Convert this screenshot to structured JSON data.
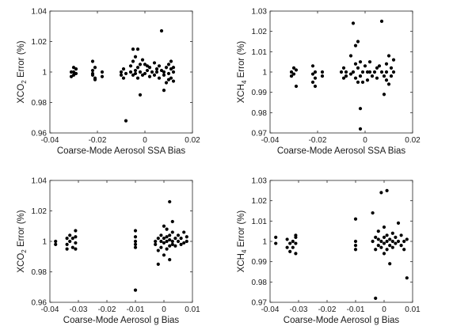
{
  "colors": {
    "marker": "#000000",
    "axes": "#262626",
    "background": "#ffffff"
  },
  "chart_data": [
    {
      "type": "scatter",
      "panel": "top-left",
      "xlabel": "Coarse-Mode Aerosol SSA Bias",
      "ylabel": {
        "base": "XCO",
        "sub": "2",
        "rest": " Error (%)"
      },
      "xlim": [
        -0.04,
        0.02
      ],
      "ylim": [
        0.96,
        1.04
      ],
      "xticks": [
        -0.04,
        -0.02,
        0,
        0.02
      ],
      "yticks": [
        0.96,
        0.98,
        1,
        1.02,
        1.04
      ],
      "xtick_labels": [
        "-0.04",
        "-0.02",
        "0",
        "0.02"
      ],
      "ytick_labels": [
        "0.96",
        "0.98",
        "1",
        "1.02",
        "1.04"
      ],
      "grid": false,
      "points": [
        [
          -0.03,
          1.0
        ],
        [
          -0.03,
          1.003
        ],
        [
          -0.03,
          0.998
        ],
        [
          -0.029,
          0.999
        ],
        [
          -0.029,
          1.002
        ],
        [
          -0.031,
          0.997
        ],
        [
          -0.031,
          1.0
        ],
        [
          -0.022,
          1.007
        ],
        [
          -0.022,
          1.001
        ],
        [
          -0.022,
          0.998
        ],
        [
          -0.021,
          0.996
        ],
        [
          -0.021,
          1.003
        ],
        [
          -0.021,
          0.995
        ],
        [
          -0.022,
          0.999
        ],
        [
          -0.018,
          1.0
        ],
        [
          -0.018,
          0.997
        ],
        [
          -0.01,
          1.0
        ],
        [
          -0.01,
          0.998
        ],
        [
          -0.009,
          1.002
        ],
        [
          -0.009,
          0.996
        ],
        [
          -0.008,
          0.968
        ],
        [
          -0.008,
          0.999
        ],
        [
          -0.006,
          1.0
        ],
        [
          -0.006,
          1.004
        ],
        [
          -0.005,
          0.998
        ],
        [
          -0.005,
          1.007
        ],
        [
          -0.005,
          1.015
        ],
        [
          -0.004,
          1.001
        ],
        [
          -0.004,
          0.999
        ],
        [
          -0.004,
          1.01
        ],
        [
          -0.003,
          1.003
        ],
        [
          -0.003,
          1.015
        ],
        [
          -0.003,
          0.996
        ],
        [
          -0.002,
          0.985
        ],
        [
          -0.002,
          1.0
        ],
        [
          -0.002,
          1.005
        ],
        [
          -0.001,
          1.008
        ],
        [
          -0.001,
          0.998
        ],
        [
          0.0,
          1.005
        ],
        [
          0.0,
          0.999
        ],
        [
          0.001,
          1.004
        ],
        [
          0.001,
          1.001
        ],
        [
          0.002,
          0.997
        ],
        [
          0.002,
          1.003
        ],
        [
          0.003,
          1.0
        ],
        [
          0.004,
          1.006
        ],
        [
          0.004,
          0.998
        ],
        [
          0.005,
          1.002
        ],
        [
          0.005,
          1.0
        ],
        [
          0.006,
          0.996
        ],
        [
          0.006,
          1.004
        ],
        [
          0.007,
          1.001
        ],
        [
          0.007,
          1.027
        ],
        [
          0.008,
          1.0
        ],
        [
          0.008,
          0.998
        ],
        [
          0.008,
          0.988
        ],
        [
          0.009,
          1.003
        ],
        [
          0.009,
          0.993
        ],
        [
          0.01,
          1.005
        ],
        [
          0.01,
          0.999
        ],
        [
          0.01,
          0.995
        ],
        [
          0.011,
          1.002
        ],
        [
          0.011,
          1.007
        ],
        [
          0.011,
          0.996
        ],
        [
          0.012,
          1.003
        ],
        [
          0.012,
          1.0
        ],
        [
          0.012,
          0.994
        ]
      ]
    },
    {
      "type": "scatter",
      "panel": "top-right",
      "xlabel": "Coarse-Mode Aerosol SSA Bias",
      "ylabel": {
        "base": "XCH",
        "sub": "4",
        "rest": " Error (%)"
      },
      "xlim": [
        -0.04,
        0.02
      ],
      "ylim": [
        0.97,
        1.03
      ],
      "xticks": [
        -0.04,
        -0.02,
        0,
        0.02
      ],
      "yticks": [
        0.97,
        0.98,
        0.99,
        1,
        1.01,
        1.02,
        1.03
      ],
      "xtick_labels": [
        "-0.04",
        "-0.02",
        "0",
        "0.02"
      ],
      "ytick_labels": [
        "0.97",
        "0.98",
        "0.99",
        "1",
        "1.01",
        "1.02",
        "1.03"
      ],
      "grid": false,
      "points": [
        [
          -0.03,
          1.002
        ],
        [
          -0.03,
          0.999
        ],
        [
          -0.029,
          1.001
        ],
        [
          -0.029,
          0.993
        ],
        [
          -0.031,
          0.998
        ],
        [
          -0.031,
          1.0
        ],
        [
          -0.022,
          1.003
        ],
        [
          -0.022,
          0.999
        ],
        [
          -0.022,
          0.995
        ],
        [
          -0.021,
          0.993
        ],
        [
          -0.021,
          1.0
        ],
        [
          -0.021,
          0.997
        ],
        [
          -0.018,
          0.998
        ],
        [
          -0.018,
          1.0
        ],
        [
          -0.01,
          1.0
        ],
        [
          -0.009,
          0.997
        ],
        [
          -0.009,
          1.002
        ],
        [
          -0.008,
          0.998
        ],
        [
          -0.008,
          1.0
        ],
        [
          -0.006,
          1.008
        ],
        [
          -0.006,
          0.999
        ],
        [
          -0.005,
          1.0
        ],
        [
          -0.005,
          1.024
        ],
        [
          -0.004,
          1.004
        ],
        [
          -0.004,
          0.997
        ],
        [
          -0.004,
          1.013
        ],
        [
          -0.003,
          0.995
        ],
        [
          -0.003,
          1.002
        ],
        [
          -0.003,
          1.015
        ],
        [
          -0.002,
          0.982
        ],
        [
          -0.002,
          0.972
        ],
        [
          -0.002,
          0.998
        ],
        [
          -0.002,
          1.005
        ],
        [
          -0.001,
          1.0
        ],
        [
          -0.001,
          0.995
        ],
        [
          0.0,
          1.003
        ],
        [
          0.001,
          1.0
        ],
        [
          0.001,
          0.996
        ],
        [
          0.002,
          1.005
        ],
        [
          0.002,
          1.0
        ],
        [
          0.003,
          0.998
        ],
        [
          0.004,
          1.0
        ],
        [
          0.005,
          1.002
        ],
        [
          0.005,
          0.997
        ],
        [
          0.006,
          1.003
        ],
        [
          0.007,
          1.0
        ],
        [
          0.007,
          1.025
        ],
        [
          0.008,
          0.998
        ],
        [
          0.008,
          0.989
        ],
        [
          0.009,
          1.004
        ],
        [
          0.009,
          0.996
        ],
        [
          0.009,
          1.0
        ],
        [
          0.01,
          1.008
        ],
        [
          0.01,
          0.994
        ],
        [
          0.011,
          1.002
        ],
        [
          0.011,
          0.998
        ],
        [
          0.012,
          1.006
        ],
        [
          0.012,
          1.0
        ]
      ]
    },
    {
      "type": "scatter",
      "panel": "bottom-left",
      "xlabel": "Coarse-Mode Aerosol g Bias",
      "ylabel": {
        "base": "XCO",
        "sub": "2",
        "rest": " Error (%)"
      },
      "xlim": [
        -0.04,
        0.01
      ],
      "ylim": [
        0.96,
        1.04
      ],
      "xticks": [
        -0.04,
        -0.03,
        -0.02,
        -0.01,
        0,
        0.01
      ],
      "yticks": [
        0.96,
        0.98,
        1,
        1.02,
        1.04
      ],
      "xtick_labels": [
        "-0.04",
        "-0.03",
        "-0.02",
        "-0.01",
        "0",
        "0.01"
      ],
      "ytick_labels": [
        "0.96",
        "0.98",
        "1",
        "1.02",
        "1.04"
      ],
      "grid": false,
      "points": [
        [
          -0.038,
          1.0
        ],
        [
          -0.038,
          0.998
        ],
        [
          -0.034,
          1.002
        ],
        [
          -0.034,
          0.998
        ],
        [
          -0.034,
          0.995
        ],
        [
          -0.033,
          1.004
        ],
        [
          -0.033,
          1.0
        ],
        [
          -0.032,
          0.996
        ],
        [
          -0.032,
          1.002
        ],
        [
          -0.031,
          1.007
        ],
        [
          -0.031,
          0.999
        ],
        [
          -0.031,
          0.995
        ],
        [
          -0.031,
          1.003
        ],
        [
          -0.01,
          1.007
        ],
        [
          -0.01,
          1.0
        ],
        [
          -0.01,
          0.998
        ],
        [
          -0.01,
          1.003
        ],
        [
          -0.01,
          0.996
        ],
        [
          -0.01,
          0.968
        ],
        [
          -0.003,
          1.0
        ],
        [
          -0.003,
          0.998
        ],
        [
          -0.002,
          0.985
        ],
        [
          -0.002,
          1.002
        ],
        [
          -0.002,
          0.994
        ],
        [
          -0.001,
          1.0
        ],
        [
          -0.001,
          1.004
        ],
        [
          -0.001,
          0.996
        ],
        [
          0.0,
          1.002
        ],
        [
          0.0,
          0.999
        ],
        [
          0.0,
          1.01
        ],
        [
          0.0,
          0.991
        ],
        [
          0.001,
          1.003
        ],
        [
          0.001,
          1.0
        ],
        [
          0.001,
          0.995
        ],
        [
          0.001,
          1.008
        ],
        [
          0.002,
          1.001
        ],
        [
          0.002,
          0.997
        ],
        [
          0.002,
          1.026
        ],
        [
          0.002,
          1.004
        ],
        [
          0.002,
          0.988
        ],
        [
          0.003,
          1.0
        ],
        [
          0.003,
          1.006
        ],
        [
          0.003,
          0.998
        ],
        [
          0.003,
          1.013
        ],
        [
          0.004,
          1.002
        ],
        [
          0.004,
          0.997
        ],
        [
          0.005,
          1.0
        ],
        [
          0.005,
          1.004
        ],
        [
          0.006,
          0.998
        ],
        [
          0.006,
          1.002
        ],
        [
          0.007,
          1.006
        ],
        [
          0.007,
          0.999
        ],
        [
          0.008,
          1.003
        ],
        [
          0.008,
          1.0
        ]
      ]
    },
    {
      "type": "scatter",
      "panel": "bottom-right",
      "xlabel": "Coarse-Mode Aerosol g Bias",
      "ylabel": {
        "base": "XCH",
        "sub": "4",
        "rest": " Error (%)"
      },
      "xlim": [
        -0.04,
        0.01
      ],
      "ylim": [
        0.97,
        1.03
      ],
      "xticks": [
        -0.04,
        -0.03,
        -0.02,
        -0.01,
        0,
        0.01
      ],
      "yticks": [
        0.97,
        0.98,
        0.99,
        1,
        1.01,
        1.02,
        1.03
      ],
      "xtick_labels": [
        "-0.04",
        "-0.03",
        "-0.02",
        "-0.01",
        "0",
        "0.01"
      ],
      "ytick_labels": [
        "0.97",
        "0.98",
        "0.99",
        "1",
        "1.01",
        "1.02",
        "1.03"
      ],
      "grid": false,
      "points": [
        [
          -0.038,
          1.002
        ],
        [
          -0.038,
          0.999
        ],
        [
          -0.034,
          1.001
        ],
        [
          -0.034,
          0.997
        ],
        [
          -0.033,
          0.999
        ],
        [
          -0.033,
          0.995
        ],
        [
          -0.032,
          1.0
        ],
        [
          -0.032,
          0.997
        ],
        [
          -0.031,
          1.003
        ],
        [
          -0.031,
          0.999
        ],
        [
          -0.031,
          0.994
        ],
        [
          -0.031,
          1.002
        ],
        [
          -0.01,
          1.011
        ],
        [
          -0.01,
          0.998
        ],
        [
          -0.01,
          1.0
        ],
        [
          -0.01,
          0.996
        ],
        [
          -0.004,
          1.014
        ],
        [
          -0.004,
          1.0
        ],
        [
          -0.003,
          0.996
        ],
        [
          -0.003,
          1.002
        ],
        [
          -0.003,
          0.972
        ],
        [
          -0.002,
          1.001
        ],
        [
          -0.002,
          0.998
        ],
        [
          -0.002,
          1.005
        ],
        [
          -0.001,
          0.997
        ],
        [
          -0.001,
          1.0
        ],
        [
          -0.001,
          1.024
        ],
        [
          0.0,
          1.002
        ],
        [
          0.0,
          0.999
        ],
        [
          0.0,
          1.007
        ],
        [
          0.0,
          0.994
        ],
        [
          0.001,
          1.0
        ],
        [
          0.001,
          1.003
        ],
        [
          0.001,
          0.996
        ],
        [
          0.001,
          1.025
        ],
        [
          0.002,
          1.001
        ],
        [
          0.002,
          0.998
        ],
        [
          0.002,
          0.989
        ],
        [
          0.003,
          1.004
        ],
        [
          0.003,
          1.0
        ],
        [
          0.003,
          0.997
        ],
        [
          0.004,
          1.002
        ],
        [
          0.004,
          0.999
        ],
        [
          0.005,
          1.009
        ],
        [
          0.005,
          1.0
        ],
        [
          0.006,
          0.998
        ],
        [
          0.006,
          1.003
        ],
        [
          0.007,
          1.0
        ],
        [
          0.007,
          0.996
        ],
        [
          0.008,
          1.001
        ],
        [
          0.008,
          0.982
        ]
      ]
    }
  ]
}
